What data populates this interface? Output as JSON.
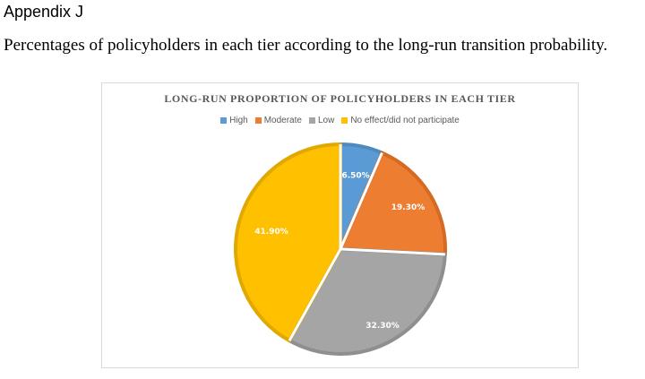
{
  "document": {
    "heading": "Appendix J",
    "caption": "Percentages of policyholders in each tier according to the long-run transition probability."
  },
  "chart_data": {
    "type": "pie",
    "title": "LONG-RUN PROPORTION OF POLICYHOLDERS IN EACH TIER",
    "legend_position": "top",
    "categories": [
      "High",
      "Moderate",
      "Low",
      "No effect/did not participate"
    ],
    "values": [
      6.5,
      19.3,
      32.3,
      41.9
    ],
    "data_labels": [
      "6.50%",
      "19.30%",
      "32.30%",
      "41.90%"
    ],
    "colors": [
      "#5B9BD5",
      "#ED7D31",
      "#A5A5A5",
      "#FFC000"
    ],
    "border_colors": [
      "#4E89C0",
      "#D46A24",
      "#8F8F8F",
      "#E0A800"
    ]
  }
}
